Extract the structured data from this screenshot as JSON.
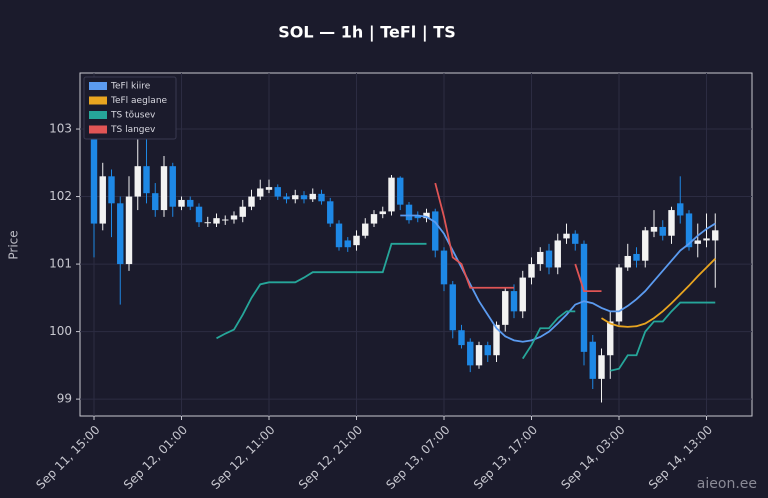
{
  "chart_data": {
    "type": "candlestick",
    "title": "SOL — 1h  |  TeFl  |  TS",
    "y_label": "Price",
    "watermark": "aieon.ee",
    "categories": [
      "Sep 11, 15:00",
      null,
      null,
      null,
      null,
      null,
      null,
      null,
      null,
      null,
      "Sep 12, 01:00",
      null,
      null,
      null,
      null,
      null,
      null,
      null,
      null,
      null,
      "Sep 12, 11:00",
      null,
      null,
      null,
      null,
      null,
      null,
      null,
      null,
      null,
      "Sep 12, 21:00",
      null,
      null,
      null,
      null,
      null,
      null,
      null,
      null,
      null,
      "Sep 13, 07:00",
      null,
      null,
      null,
      null,
      null,
      null,
      null,
      null,
      null,
      "Sep 13, 17:00",
      null,
      null,
      null,
      null,
      null,
      null,
      null,
      null,
      null,
      "Sep 14, 03:00",
      null,
      null,
      null,
      null,
      null,
      null,
      null,
      null,
      null,
      "Sep 14, 13:00",
      null
    ],
    "open": [
      103.0,
      101.6,
      102.3,
      101.9,
      101.0,
      102.0,
      102.45,
      102.05,
      101.8,
      102.45,
      101.85,
      101.95,
      101.85,
      101.62,
      101.6,
      101.66,
      101.66,
      101.7,
      101.85,
      102.0,
      102.1,
      102.14,
      102.0,
      101.96,
      102.02,
      101.96,
      102.04,
      101.93,
      101.6,
      101.35,
      101.28,
      101.42,
      101.6,
      101.74,
      101.78,
      102.28,
      101.88,
      101.72,
      101.68,
      101.78,
      101.2,
      100.7,
      100.02,
      99.85,
      99.5,
      99.8,
      99.65,
      100.1,
      100.6,
      100.3,
      100.8,
      101.0,
      101.2,
      100.95,
      101.38,
      101.45,
      101.3,
      99.85,
      99.3,
      99.65,
      100.15,
      100.95,
      101.15,
      101.05,
      101.48,
      101.55,
      101.42,
      101.9,
      101.75,
      101.3,
      101.35,
      101.35
    ],
    "high": [
      103.3,
      102.5,
      102.4,
      102.0,
      102.3,
      103.0,
      102.9,
      102.2,
      102.6,
      102.5,
      102.0,
      102.0,
      101.9,
      101.7,
      101.75,
      101.72,
      101.78,
      101.95,
      102.1,
      102.25,
      102.25,
      102.18,
      102.05,
      102.1,
      102.08,
      102.12,
      102.1,
      101.98,
      101.65,
      101.4,
      101.5,
      101.68,
      101.8,
      101.85,
      102.32,
      102.3,
      101.92,
      101.78,
      101.82,
      101.82,
      101.25,
      100.75,
      100.1,
      99.9,
      99.85,
      99.85,
      100.15,
      100.65,
      100.7,
      100.9,
      101.1,
      101.25,
      101.3,
      101.45,
      101.6,
      101.5,
      101.35,
      99.95,
      99.75,
      100.3,
      101.0,
      101.3,
      101.25,
      101.55,
      101.8,
      101.65,
      101.85,
      102.3,
      101.8,
      101.6,
      101.75,
      101.75
    ],
    "low": [
      101.1,
      101.5,
      101.4,
      100.4,
      100.9,
      101.8,
      101.9,
      101.7,
      101.7,
      101.7,
      101.8,
      101.8,
      101.55,
      101.55,
      101.55,
      101.58,
      101.6,
      101.62,
      101.8,
      101.95,
      102.05,
      101.95,
      101.9,
      101.9,
      101.9,
      101.92,
      101.88,
      101.55,
      101.2,
      101.18,
      101.2,
      101.38,
      101.55,
      101.68,
      101.72,
      101.8,
      101.6,
      101.62,
      101.62,
      101.1,
      100.6,
      99.9,
      99.75,
      99.4,
      99.45,
      99.55,
      99.55,
      100.0,
      100.2,
      100.2,
      100.7,
      100.9,
      100.85,
      100.85,
      101.3,
      101.2,
      99.5,
      99.15,
      98.95,
      99.3,
      100.1,
      100.9,
      100.95,
      100.95,
      101.4,
      101.35,
      101.3,
      101.6,
      101.2,
      101.1,
      101.25,
      100.65
    ],
    "close": [
      101.6,
      102.3,
      101.9,
      101.0,
      102.0,
      102.45,
      102.05,
      101.8,
      102.45,
      101.85,
      101.95,
      101.85,
      101.62,
      101.62,
      101.68,
      101.66,
      101.72,
      101.85,
      102.0,
      102.12,
      102.14,
      102.0,
      101.96,
      102.02,
      101.96,
      102.04,
      101.93,
      101.6,
      101.25,
      101.25,
      101.42,
      101.6,
      101.74,
      101.78,
      102.28,
      101.88,
      101.65,
      101.68,
      101.76,
      101.2,
      100.7,
      100.02,
      99.8,
      99.5,
      99.8,
      99.65,
      100.1,
      100.6,
      100.3,
      100.8,
      101.0,
      101.18,
      100.95,
      101.35,
      101.45,
      101.3,
      99.7,
      99.3,
      99.65,
      100.15,
      100.95,
      101.12,
      101.05,
      101.5,
      101.55,
      101.42,
      101.8,
      101.72,
      101.25,
      101.35,
      101.38,
      101.5
    ],
    "up_color": "#f2f2f2",
    "down_color": "#1e88e5",
    "series": [
      {
        "name": "TeFl kiire",
        "color": "#5b9bf0",
        "values": [
          null,
          null,
          null,
          null,
          null,
          null,
          null,
          null,
          null,
          null,
          null,
          null,
          null,
          null,
          null,
          null,
          null,
          null,
          null,
          null,
          null,
          null,
          null,
          null,
          null,
          null,
          null,
          null,
          null,
          null,
          null,
          null,
          null,
          null,
          null,
          101.72,
          101.72,
          101.72,
          101.7,
          101.62,
          101.45,
          101.2,
          100.95,
          100.7,
          100.45,
          100.25,
          100.05,
          99.93,
          99.87,
          99.85,
          99.87,
          99.92,
          100.0,
          100.12,
          100.25,
          100.4,
          100.45,
          100.42,
          100.35,
          100.3,
          100.3,
          100.38,
          100.48,
          100.6,
          100.75,
          100.9,
          101.05,
          101.2,
          101.3,
          101.42,
          101.52,
          101.6
        ]
      },
      {
        "name": "TeFl aeglane",
        "color": "#e8a520",
        "values": [
          null,
          null,
          null,
          null,
          null,
          null,
          null,
          null,
          null,
          null,
          null,
          null,
          null,
          null,
          null,
          null,
          null,
          null,
          null,
          null,
          null,
          null,
          null,
          null,
          null,
          null,
          null,
          null,
          null,
          null,
          null,
          null,
          null,
          null,
          null,
          null,
          null,
          null,
          null,
          null,
          null,
          null,
          null,
          null,
          null,
          null,
          null,
          null,
          null,
          null,
          null,
          null,
          null,
          null,
          null,
          null,
          null,
          null,
          100.2,
          100.12,
          100.08,
          100.07,
          100.08,
          100.12,
          100.2,
          100.3,
          100.42,
          100.55,
          100.68,
          100.82,
          100.95,
          101.08
        ]
      },
      {
        "name": "TS tõusev",
        "color": "#26a69a",
        "values": [
          null,
          null,
          null,
          null,
          null,
          null,
          null,
          null,
          null,
          null,
          null,
          null,
          null,
          null,
          99.9,
          99.97,
          100.03,
          100.25,
          100.5,
          100.7,
          100.73,
          100.73,
          100.73,
          100.73,
          100.8,
          100.88,
          100.88,
          100.88,
          100.88,
          100.88,
          100.88,
          100.88,
          100.88,
          100.88,
          101.3,
          101.3,
          101.3,
          101.3,
          101.3,
          null,
          null,
          null,
          null,
          null,
          null,
          null,
          null,
          null,
          null,
          99.6,
          99.8,
          100.05,
          100.05,
          100.2,
          100.3,
          100.3,
          null,
          null,
          null,
          99.42,
          99.45,
          99.65,
          99.65,
          100.0,
          100.15,
          100.15,
          100.3,
          100.43,
          100.43,
          100.43,
          100.43,
          100.43
        ]
      },
      {
        "name": "TS langev",
        "color": "#e05555",
        "values": [
          null,
          null,
          null,
          null,
          null,
          null,
          null,
          null,
          null,
          null,
          null,
          null,
          null,
          null,
          null,
          null,
          null,
          null,
          null,
          null,
          null,
          null,
          null,
          null,
          null,
          null,
          null,
          null,
          null,
          null,
          null,
          null,
          null,
          null,
          null,
          null,
          null,
          null,
          null,
          102.2,
          101.7,
          101.1,
          101.0,
          100.65,
          100.65,
          100.65,
          100.65,
          100.65,
          100.65,
          null,
          null,
          null,
          null,
          null,
          null,
          101.0,
          100.6,
          100.6,
          100.6,
          null,
          null,
          null,
          null,
          null,
          null,
          null,
          null,
          null,
          null,
          null,
          null,
          null
        ]
      }
    ],
    "ylim": [
      98.75,
      103.83
    ],
    "yticks": [
      99,
      100,
      101,
      102,
      103
    ],
    "grid": true,
    "legend": "upper left"
  }
}
